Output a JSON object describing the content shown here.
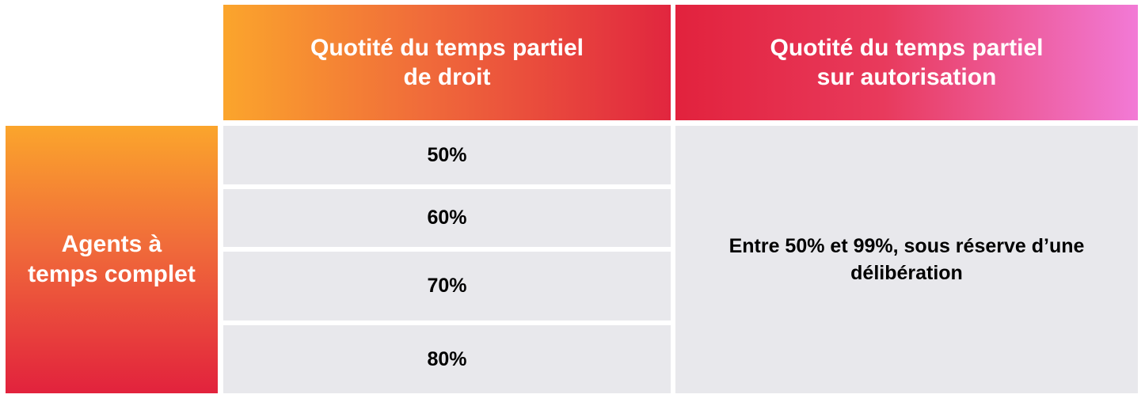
{
  "table": {
    "headers": [
      "Quotité du temps partiel\nde droit",
      "Quotité du temps partiel\nsur autorisation"
    ],
    "row_header": "Agents à\ntemps complet",
    "rows": [
      "50%",
      "60%",
      "70%",
      "80%"
    ],
    "authorization_value": "Entre 50% et 99%, sous réserve d’une\ndélibération"
  }
}
